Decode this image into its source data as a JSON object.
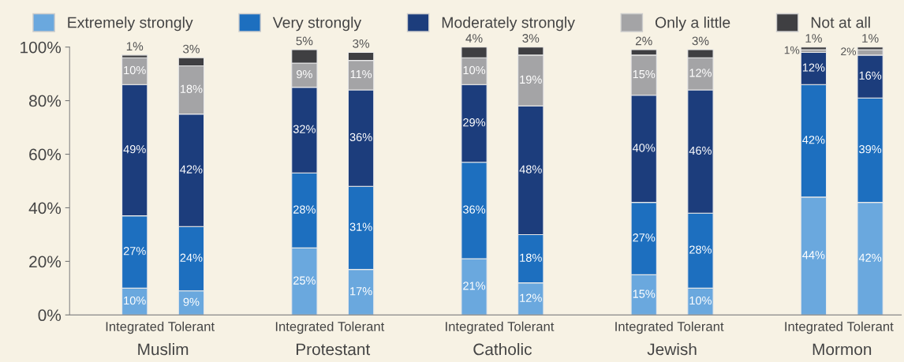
{
  "chart_data": {
    "type": "bar",
    "stacked": true,
    "categories": [
      "Integrated",
      "Tolerant",
      "Integrated",
      "Tolerant",
      "Integrated",
      "Tolerant",
      "Integrated",
      "Tolerant",
      "Integrated",
      "Tolerant"
    ],
    "annotations": [
      "Muslim",
      "Protestant",
      "Catholic",
      "Jewish",
      "Mormon"
    ],
    "series": [
      {
        "name": "Extremely strongly",
        "color": "#6aa8de",
        "values": [
          10,
          9,
          25,
          17,
          21,
          12,
          15,
          10,
          44,
          42
        ],
        "value_labels": [
          "10%",
          "9%",
          "25%",
          "17%",
          "21%",
          "12%",
          "15%",
          "10%",
          "44%",
          "42%"
        ]
      },
      {
        "name": "Very strongly",
        "color": "#1d6fbf",
        "values": [
          27,
          24,
          28,
          31,
          36,
          18,
          27,
          28,
          42,
          39
        ],
        "value_labels": [
          "27%",
          "24%",
          "28%",
          "31%",
          "36%",
          "18%",
          "27%",
          "28%",
          "42%",
          "39%"
        ]
      },
      {
        "name": "Moderately strongly",
        "color": "#1c3d7c",
        "values": [
          49,
          42,
          32,
          36,
          29,
          48,
          40,
          46,
          12,
          16
        ],
        "value_labels": [
          "49%",
          "42%",
          "32%",
          "36%",
          "29%",
          "48%",
          "40%",
          "46%",
          "12%",
          "16%"
        ]
      },
      {
        "name": "Only a little",
        "color": "#a4a4a6",
        "values": [
          10,
          18,
          9,
          11,
          10,
          19,
          15,
          12,
          1,
          2
        ],
        "value_labels": [
          "10%",
          "18%",
          "9%",
          "11%",
          "10%",
          "19%",
          "15%",
          "12%",
          "1%",
          "2%"
        ]
      },
      {
        "name": "Not at all",
        "color": "#3f3f42",
        "values": [
          1,
          3,
          5,
          3,
          4,
          3,
          2,
          3,
          1,
          1
        ],
        "value_labels": [
          "1%",
          "3%",
          "5%",
          "3%",
          "4%",
          "3%",
          "2%",
          "3%",
          "1%",
          "1%"
        ]
      }
    ],
    "ylim": [
      0,
      100
    ],
    "yticks": [
      {
        "value": 0,
        "label": "0%"
      },
      {
        "value": 20,
        "label": "20%"
      },
      {
        "value": 40,
        "label": "40%"
      },
      {
        "value": 60,
        "label": "60%"
      },
      {
        "value": 80,
        "label": "80%"
      },
      {
        "value": 100,
        "label": "100%"
      }
    ],
    "legend": "top",
    "grid": false
  }
}
